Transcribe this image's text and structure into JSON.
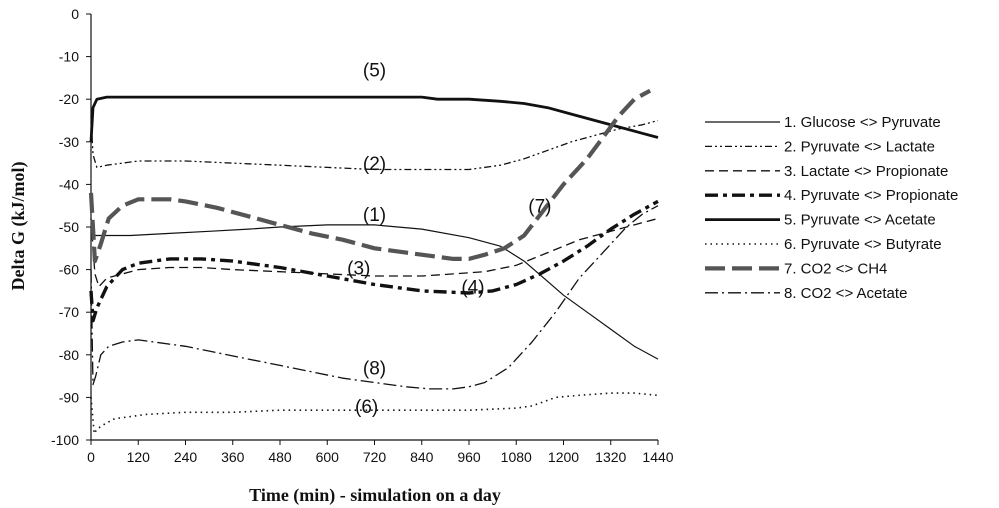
{
  "chart_data": {
    "type": "line",
    "title": "",
    "xlabel": "Time (min) - simulation on a day",
    "ylabel": "Delta G (kJ/mol)",
    "xlim": [
      0,
      1440
    ],
    "ylim": [
      -100,
      0
    ],
    "xticks": [
      0,
      120,
      240,
      360,
      480,
      600,
      720,
      840,
      960,
      1080,
      1200,
      1320,
      1440
    ],
    "yticks": [
      0,
      -10,
      -20,
      -30,
      -40,
      -50,
      -60,
      -70,
      -80,
      -90,
      -100
    ],
    "grid": false,
    "legend_position": "right",
    "series": [
      {
        "name": "1. Glucose <> Pyruvate",
        "color": "#111111",
        "style": "thin-solid",
        "x": [
          0,
          10,
          20,
          100,
          200,
          300,
          400,
          480,
          600,
          720,
          840,
          960,
          1040,
          1100,
          1150,
          1200,
          1260,
          1320,
          1380,
          1440
        ],
        "y": [
          -52,
          -52,
          -52,
          -52,
          -51.5,
          -51,
          -50.5,
          -50,
          -49.5,
          -49.5,
          -50.5,
          -52.5,
          -54.5,
          -58,
          -62,
          -66,
          -70,
          -74,
          -78,
          -81
        ]
      },
      {
        "name": "2. Pyruvate <> Lactate",
        "color": "#111111",
        "style": "dash-dot-dot",
        "x": [
          0,
          5,
          15,
          40,
          80,
          120,
          240,
          360,
          480,
          600,
          720,
          840,
          960,
          1040,
          1100,
          1160,
          1220,
          1280,
          1340,
          1400,
          1440
        ],
        "y": [
          -24,
          -33,
          -36,
          -35.5,
          -35,
          -34.5,
          -34.5,
          -35,
          -35.5,
          -36,
          -36.5,
          -36.5,
          -36.5,
          -35.5,
          -34,
          -32,
          -30,
          -28.5,
          -27,
          -26,
          -25
        ]
      },
      {
        "name": "3. Lactate <> Propionate",
        "color": "#111111",
        "style": "medium-dash",
        "x": [
          0,
          10,
          20,
          40,
          80,
          120,
          200,
          280,
          360,
          480,
          600,
          720,
          840,
          920,
          1000,
          1080,
          1160,
          1240,
          1320,
          1400,
          1440
        ],
        "y": [
          -48,
          -61,
          -64,
          -62,
          -61,
          -60,
          -59.5,
          -59.5,
          -60,
          -60.5,
          -61,
          -61.5,
          -61.5,
          -61,
          -60.5,
          -59,
          -56,
          -53,
          -51,
          -49,
          -48
        ]
      },
      {
        "name": "4. Pyruvate <> Propionate",
        "color": "#111111",
        "style": "heavy-dash",
        "x": [
          0,
          5,
          15,
          40,
          80,
          120,
          200,
          280,
          360,
          480,
          600,
          720,
          840,
          960,
          1020,
          1080,
          1140,
          1200,
          1260,
          1320,
          1380,
          1440
        ],
        "y": [
          -65,
          -72,
          -69,
          -64,
          -60,
          -58.5,
          -57.5,
          -57.5,
          -58,
          -59.5,
          -61.5,
          -63.5,
          -65,
          -65.5,
          -65,
          -63.5,
          -61,
          -58,
          -54.5,
          -50.5,
          -47,
          -44
        ]
      },
      {
        "name": "5. Pyruvate <> Acetate",
        "color": "#111111",
        "style": "thick-solid",
        "x": [
          0,
          5,
          15,
          40,
          120,
          240,
          360,
          480,
          600,
          720,
          840,
          880,
          960,
          1040,
          1100,
          1160,
          1220,
          1280,
          1340,
          1400,
          1440
        ],
        "y": [
          -30,
          -22,
          -20,
          -19.5,
          -19.5,
          -19.5,
          -19.5,
          -19.5,
          -19.5,
          -19.5,
          -19.5,
          -20,
          -20,
          -20.5,
          -21,
          -22,
          -23.5,
          -25,
          -26.5,
          -28,
          -29
        ]
      },
      {
        "name": "6. Pyruvate <> Butyrate",
        "color": "#111111",
        "style": "dotted",
        "x": [
          0,
          8,
          15,
          30,
          60,
          100,
          140,
          240,
          360,
          480,
          600,
          720,
          840,
          960,
          1080,
          1120,
          1180,
          1240,
          1320,
          1380,
          1440
        ],
        "y": [
          -90,
          -98.5,
          -97.5,
          -96.5,
          -95,
          -94.5,
          -94,
          -93.5,
          -93.5,
          -93,
          -93,
          -93,
          -93,
          -93,
          -92.5,
          -92,
          -90,
          -89.5,
          -89,
          -89,
          -89.5
        ]
      },
      {
        "name": "7. CO2 <> CH4",
        "color": "#555555",
        "style": "gray-long-dash",
        "x": [
          0,
          10,
          25,
          45,
          80,
          120,
          160,
          200,
          240,
          320,
          400,
          480,
          560,
          640,
          720,
          800,
          880,
          920,
          960,
          1000,
          1050,
          1100,
          1150,
          1200,
          1260,
          1300,
          1340,
          1380,
          1420
        ],
        "y": [
          -42,
          -58,
          -54,
          -48,
          -45,
          -43.5,
          -43.5,
          -43.5,
          -44,
          -45.5,
          -47.5,
          -49.5,
          -51.5,
          -53,
          -55,
          -56,
          -57,
          -57.5,
          -57.5,
          -56.5,
          -55,
          -52,
          -46,
          -40,
          -34,
          -29,
          -24,
          -20,
          -18
        ]
      },
      {
        "name": "8. CO2 <> Acetate",
        "color": "#111111",
        "style": "long-dash-dot",
        "x": [
          0,
          5,
          12,
          25,
          45,
          80,
          120,
          160,
          240,
          320,
          400,
          480,
          560,
          640,
          720,
          800,
          860,
          920,
          960,
          1000,
          1060,
          1120,
          1180,
          1240,
          1300,
          1360,
          1400,
          1440
        ],
        "y": [
          -60,
          -87,
          -85,
          -80,
          -78,
          -77,
          -76.5,
          -77,
          -78,
          -79.5,
          -81,
          -82.5,
          -84,
          -85.5,
          -86.5,
          -87.5,
          -88,
          -88,
          -87.5,
          -86.5,
          -83,
          -77,
          -70,
          -62,
          -56,
          -50,
          -47,
          -45
        ]
      }
    ],
    "annotations": [
      {
        "text": "(5)",
        "x": 720,
        "y": -13
      },
      {
        "text": "(2)",
        "x": 720,
        "y": -35
      },
      {
        "text": "(1)",
        "x": 720,
        "y": -47
      },
      {
        "text": "(3)",
        "x": 680,
        "y": -59.5
      },
      {
        "text": "(4)",
        "x": 970,
        "y": -64
      },
      {
        "text": "(7)",
        "x": 1140,
        "y": -45
      },
      {
        "text": "(8)",
        "x": 720,
        "y": -83
      },
      {
        "text": "(6)",
        "x": 700,
        "y": -92
      }
    ]
  }
}
